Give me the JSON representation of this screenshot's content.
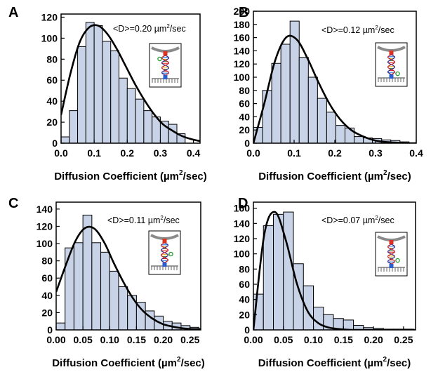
{
  "figure": {
    "bar_color": "#c8d3e8",
    "bar_edge": "#000000",
    "curve_color": "#000000"
  },
  "chart_data": [
    {
      "panel": "A",
      "type": "bar",
      "xlabel": "Diffusion Coefficient (µm2/sec)",
      "xlabel_main": "Diffusion Coefficient (µm",
      "xlabel_sup": "2",
      "xlabel_tail": "/sec)",
      "annotation_main": "<D>=0.20 µm",
      "annotation_sup": "2",
      "annotation_tail": "/sec",
      "xlim": [
        0,
        0.42
      ],
      "ylim": [
        0,
        123
      ],
      "xticks": [
        0.0,
        0.1,
        0.2,
        0.3,
        0.4
      ],
      "xtick_labels": [
        "0.0",
        "0.1",
        "0.2",
        "0.3",
        "0.4"
      ],
      "yticks": [
        0,
        20,
        40,
        60,
        80,
        100,
        120
      ],
      "ytick_labels": [
        "0",
        "20",
        "40",
        "60",
        "80",
        "100",
        "120"
      ],
      "bin_width": 0.025,
      "bin_start": 0.0,
      "values": [
        6,
        31,
        92,
        115,
        112,
        97,
        88,
        62,
        52,
        42,
        31,
        25,
        21,
        18,
        9
      ],
      "fit": {
        "x0": 0.0,
        "x1": 0.42,
        "y": [
          27,
          66,
          96,
          110,
          112,
          104,
          90,
          73,
          56,
          41,
          28,
          18,
          12,
          7,
          4,
          2
        ]
      },
      "inset_variant": "top"
    },
    {
      "panel": "B",
      "type": "bar",
      "xlabel": "Diffusion Coefficient (µm2/sec)",
      "xlabel_main": "Diffusion Coefficient (µm",
      "xlabel_sup": "2",
      "xlabel_tail": "/sec)",
      "annotation_main": "<D>=0.12 µm",
      "annotation_sup": "2",
      "annotation_tail": "/sec",
      "xlim": [
        0,
        0.4
      ],
      "ylim": [
        0,
        200
      ],
      "xticks": [
        0.0,
        0.1,
        0.2,
        0.3,
        0.4
      ],
      "xtick_labels": [
        "0.0",
        "0.1",
        "0.2",
        "0.3",
        "0.4"
      ],
      "yticks": [
        0,
        20,
        40,
        60,
        80,
        100,
        120,
        140,
        160,
        180,
        200
      ],
      "ytick_labels": [
        "0",
        "20",
        "40",
        "60",
        "80",
        "100",
        "120",
        "140",
        "160",
        "180",
        "200"
      ],
      "bin_width": 0.0225,
      "bin_start": 0.0,
      "values": [
        24,
        80,
        121,
        150,
        185,
        130,
        100,
        68,
        47,
        27,
        23,
        10,
        8,
        7,
        5,
        4,
        2
      ],
      "fit": {
        "x0": 0.0,
        "x1": 0.4,
        "y": [
          0,
          60,
          125,
          160,
          157,
          128,
          92,
          60,
          36,
          20,
          11,
          5,
          2,
          1,
          0,
          0
        ]
      },
      "inset_variant": "bottom"
    },
    {
      "panel": "C",
      "type": "bar",
      "xlabel": "Diffusion Coefficient (µm2/sec)",
      "xlabel_main": "Diffusion Coefficient (µm",
      "xlabel_sup": "2",
      "xlabel_tail": "/sec)",
      "annotation_main": "<D>=0.11 µm",
      "annotation_sup": "2",
      "annotation_tail": "/sec",
      "xlim": [
        0,
        0.27
      ],
      "ylim": [
        0,
        148
      ],
      "xticks": [
        0.0,
        0.05,
        0.1,
        0.15,
        0.2,
        0.25
      ],
      "xtick_labels": [
        "0.00",
        "0.05",
        "0.10",
        "0.15",
        "0.20",
        "0.25"
      ],
      "yticks": [
        0,
        20,
        40,
        60,
        80,
        100,
        120,
        140
      ],
      "ytick_labels": [
        "0",
        "20",
        "40",
        "60",
        "80",
        "100",
        "120",
        "140"
      ],
      "bin_width": 0.01666,
      "bin_start": 0.0,
      "values": [
        8,
        95,
        101,
        133,
        101,
        90,
        68,
        50,
        40,
        32,
        22,
        16,
        10,
        8,
        5,
        3
      ],
      "fit": {
        "x0": 0.0,
        "x1": 0.27,
        "y": [
          44,
          75,
          103,
          118,
          117,
          101,
          77,
          55,
          36,
          22,
          13,
          7,
          4,
          2,
          1,
          1
        ]
      },
      "inset_variant": "middle"
    },
    {
      "panel": "D",
      "type": "bar",
      "xlabel": "Diffusion Coefficient (µm2/sec)",
      "xlabel_main": "Diffusion Coefficient (µm",
      "xlabel_sup": "2",
      "xlabel_tail": "/sec)",
      "annotation_main": "<D>=0.07 µm",
      "annotation_sup": "2",
      "annotation_tail": "/sec",
      "xlim": [
        0,
        0.27
      ],
      "ylim": [
        0,
        168
      ],
      "xticks": [
        0.0,
        0.05,
        0.1,
        0.15,
        0.2,
        0.25
      ],
      "xtick_labels": [
        "0.00",
        "0.05",
        "0.10",
        "0.15",
        "0.20",
        "0.25"
      ],
      "yticks": [
        0,
        20,
        40,
        60,
        80,
        100,
        120,
        140,
        160
      ],
      "ytick_labels": [
        "0",
        "20",
        "40",
        "60",
        "80",
        "100",
        "120",
        "140",
        "160"
      ],
      "bin_width": 0.01666,
      "bin_start": 0.0,
      "values": [
        47,
        137,
        152,
        155,
        87,
        58,
        30,
        20,
        15,
        13,
        6,
        3,
        2,
        1,
        1,
        1
      ],
      "fit": {
        "x0": 0.0,
        "x1": 0.27,
        "y": [
          0,
          125,
          155,
          118,
          62,
          25,
          9,
          3,
          1,
          0,
          0,
          0,
          0,
          0,
          0,
          0
        ]
      },
      "inset_variant": "lower"
    }
  ]
}
